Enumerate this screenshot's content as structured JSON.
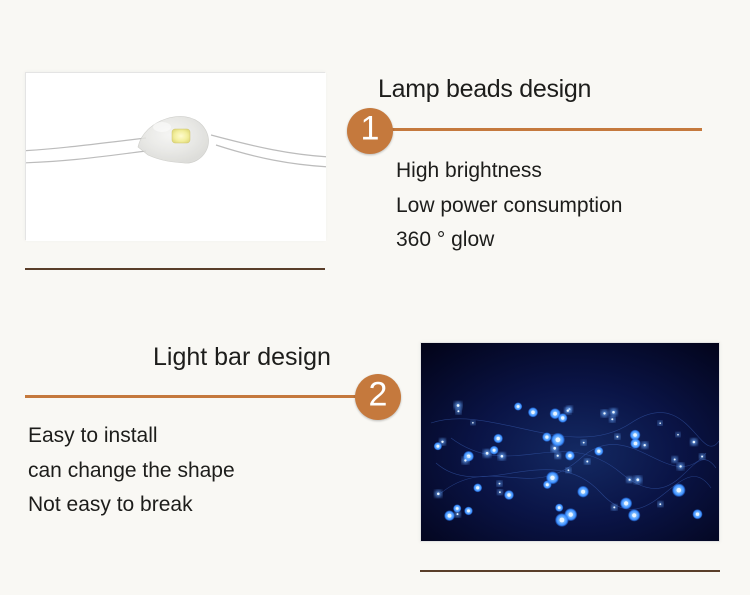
{
  "colors": {
    "page_bg": "#f9f8f4",
    "text": "#1d1d1b",
    "accent": "#c5793d",
    "underline": "#5a3e2a",
    "wire": "#b9b9b9",
    "led_core": "#fff8c0",
    "led_glow": "#e8e6b2",
    "bead_fill": "#e6e6e4",
    "night_bg": "#04072b",
    "night_center": "#132a66",
    "blue_light": "#4aa2ff",
    "blue_light_core": "#d8ecff"
  },
  "sections": [
    {
      "number": "1",
      "title": "Lamp beads design",
      "bullets": [
        "High brightness",
        "Low power consumption",
        "360 ° glow"
      ],
      "imageSide": "left"
    },
    {
      "number": "2",
      "title": "Light bar design",
      "bullets": [
        "Easy to install",
        "can change the shape",
        "Not easy to break"
      ],
      "imageSide": "right"
    }
  ]
}
